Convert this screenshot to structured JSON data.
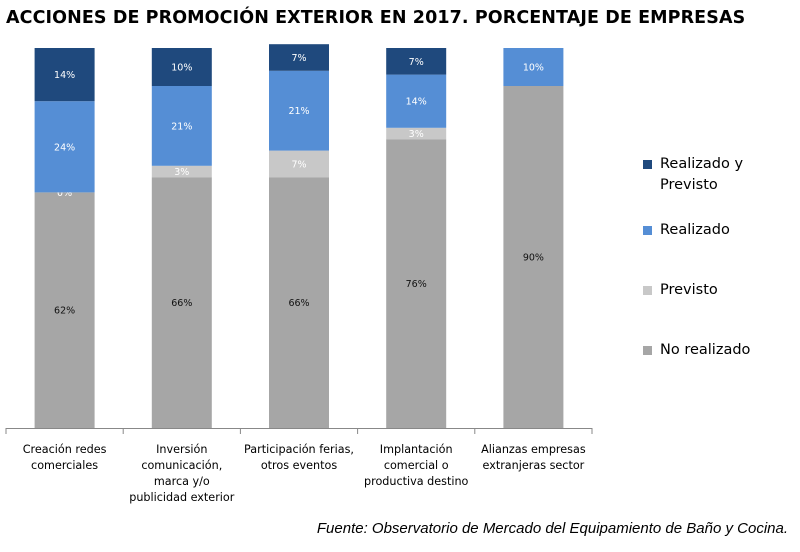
{
  "title": "ACCIONES DE PROMOCIÓN EXTERIOR EN 2017. PORCENTAJE DE EMPRESAS",
  "source": "Fuente: Observatorio de Mercado del Equipamiento de Baño y Cocina.",
  "chart_data": {
    "type": "bar",
    "stacked": true,
    "categories": [
      "Creación redes comerciales",
      "Inversión comunicación, marca y/o publicidad exterior",
      "Participación ferias, otros eventos",
      "Implantación comercial o productiva destino",
      "Alianzas empresas extranjeras sector"
    ],
    "category_lines": [
      [
        "Creación redes",
        "comerciales"
      ],
      [
        "Inversión",
        "comunicación,",
        "marca y/o",
        "publicidad exterior"
      ],
      [
        "Participación ferias,",
        "otros eventos"
      ],
      [
        "Implantación",
        "comercial o",
        "productiva destino"
      ],
      [
        "Alianzas empresas",
        "extranjeras sector"
      ]
    ],
    "series": [
      {
        "name": "No realizado",
        "color": "#a6a6a6",
        "values": [
          62,
          66,
          66,
          76,
          90
        ],
        "labels": [
          "62%",
          "66%",
          "66%",
          "76%",
          "90%"
        ]
      },
      {
        "name": "Previsto",
        "color": "#c8c8c8",
        "values": [
          0,
          3,
          7,
          3,
          0
        ],
        "labels": [
          "0%",
          "3%",
          "7%",
          "3%",
          ""
        ]
      },
      {
        "name": "Realizado",
        "color": "#558ed5",
        "values": [
          24,
          21,
          21,
          14,
          10
        ],
        "labels": [
          "24%",
          "21%",
          "21%",
          "14%",
          "10%"
        ]
      },
      {
        "name": "Realizado y Previsto",
        "color": "#1f497d",
        "values": [
          14,
          10,
          7,
          7,
          0
        ],
        "labels": [
          "14%",
          "10%",
          "7%",
          "7%",
          ""
        ]
      }
    ],
    "legend_order": [
      "Realizado y Previsto",
      "Realizado",
      "Previsto",
      "No realizado"
    ],
    "legend_position": "right",
    "ylim": [
      0,
      100
    ],
    "grid": false
  }
}
